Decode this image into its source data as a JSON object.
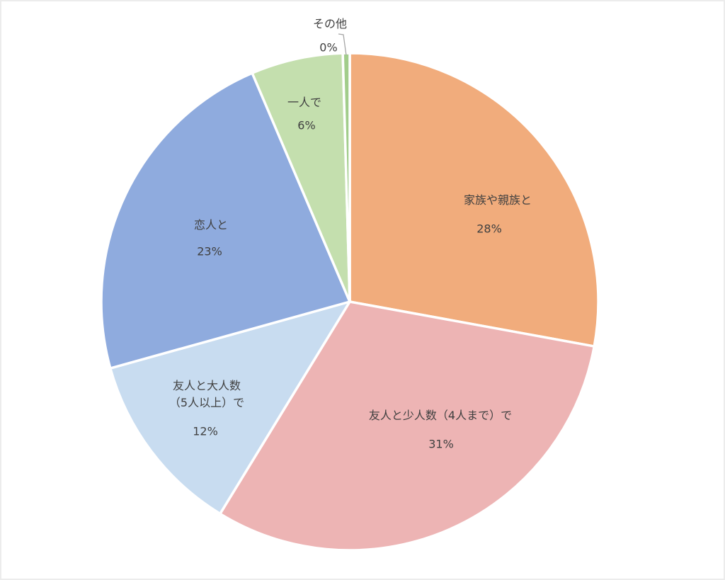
{
  "chart_data": {
    "type": "pie",
    "title": "",
    "legend": "none",
    "start_angle_deg": 0,
    "direction": "clockwise",
    "label_style": "category name + percent inside slice, outliers with leader line",
    "label_text_color": "#404040",
    "slice_border_color": "#ffffff",
    "background_color": "#ffffff",
    "slices": [
      {
        "label": "家族や親族と",
        "percent_label": "28%",
        "value": 28,
        "color": "#F1AC7C"
      },
      {
        "label": "友人と少人数（4人まで）で",
        "percent_label": "31%",
        "value": 31,
        "color": "#EDB4B4"
      },
      {
        "label": "友人と大人数\n（5人以上）で",
        "percent_label": "12%",
        "value": 12,
        "color": "#C8DCF0"
      },
      {
        "label": "恋人と",
        "percent_label": "23%",
        "value": 23,
        "color": "#8FABDE"
      },
      {
        "label": "一人で",
        "percent_label": "6%",
        "value": 6,
        "color": "#C4DFAE"
      },
      {
        "label": "その他",
        "percent_label": "0%",
        "value": 0,
        "color": "#A2CD8B"
      }
    ]
  }
}
